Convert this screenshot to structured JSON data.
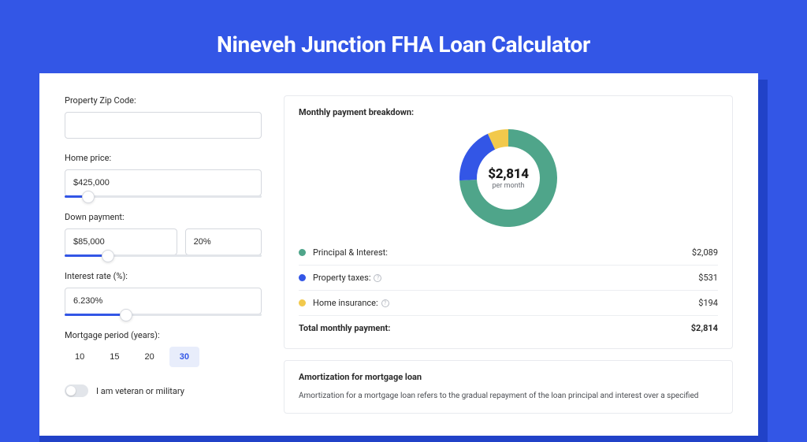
{
  "title": "Nineveh Junction FHA Loan Calculator",
  "colors": {
    "page_bg": "#3356e6",
    "shadow_bg": "#2142c8",
    "card_bg": "#ffffff",
    "accent": "#3356e6",
    "text": "#2a2a2a",
    "muted": "#6b6f76",
    "border": "#e8eaee",
    "slider_track": "#e2e5ea"
  },
  "form": {
    "zip": {
      "label": "Property Zip Code:",
      "value": ""
    },
    "home_price": {
      "label": "Home price:",
      "value": "$425,000",
      "slider_pct": 12
    },
    "down_payment": {
      "label": "Down payment:",
      "value": "$85,000",
      "pct_value": "20%",
      "slider_pct": 22
    },
    "interest_rate": {
      "label": "Interest rate (%):",
      "value": "6.230%",
      "slider_pct": 31
    },
    "mortgage_period": {
      "label": "Mortgage period (years):",
      "options": [
        "10",
        "15",
        "20",
        "30"
      ],
      "active_index": 3
    },
    "veteran_toggle": {
      "label": "I am veteran or military",
      "checked": false
    }
  },
  "breakdown": {
    "title": "Monthly payment breakdown:",
    "donut": {
      "center_value": "$2,814",
      "center_sub": "per month",
      "slices": [
        {
          "label": "Principal & Interest:",
          "value": "$2,089",
          "pct": 74.2,
          "color": "#4fa58a",
          "has_info": false
        },
        {
          "label": "Property taxes:",
          "value": "$531",
          "pct": 18.9,
          "color": "#3356e6",
          "has_info": true
        },
        {
          "label": "Home insurance:",
          "value": "$194",
          "pct": 6.9,
          "color": "#f2c94c",
          "has_info": true
        }
      ]
    },
    "total": {
      "label": "Total monthly payment:",
      "value": "$2,814"
    }
  },
  "amortization": {
    "title": "Amortization for mortgage loan",
    "text": "Amortization for a mortgage loan refers to the gradual repayment of the loan principal and interest over a specified"
  }
}
